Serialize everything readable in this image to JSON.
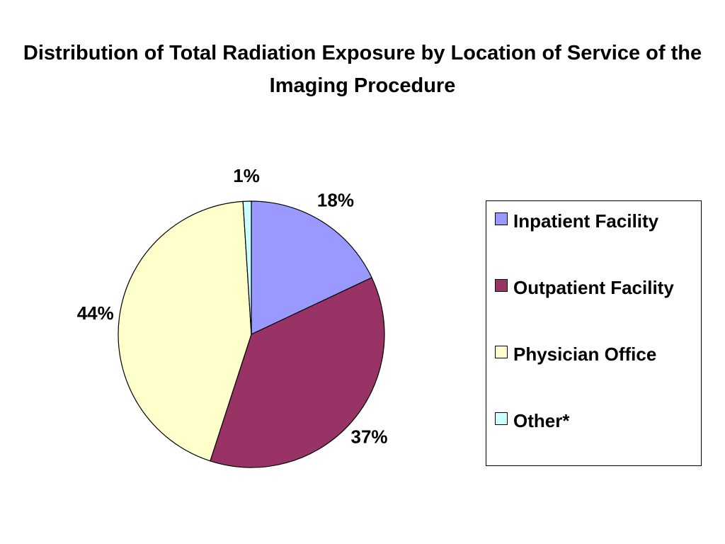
{
  "chart_data": {
    "type": "pie",
    "title": "Distribution of Total Radiation Exposure by Location of Service of the Imaging Procedure",
    "categories": [
      "Inpatient Facility",
      "Outpatient Facility",
      "Physician Office",
      "Other*"
    ],
    "values": [
      18,
      37,
      44,
      1
    ],
    "value_labels": [
      "18%",
      "37%",
      "44%",
      "1%"
    ],
    "colors": [
      "#9999ff",
      "#993366",
      "#ffffcc",
      "#ccffff"
    ],
    "legend": "right"
  }
}
